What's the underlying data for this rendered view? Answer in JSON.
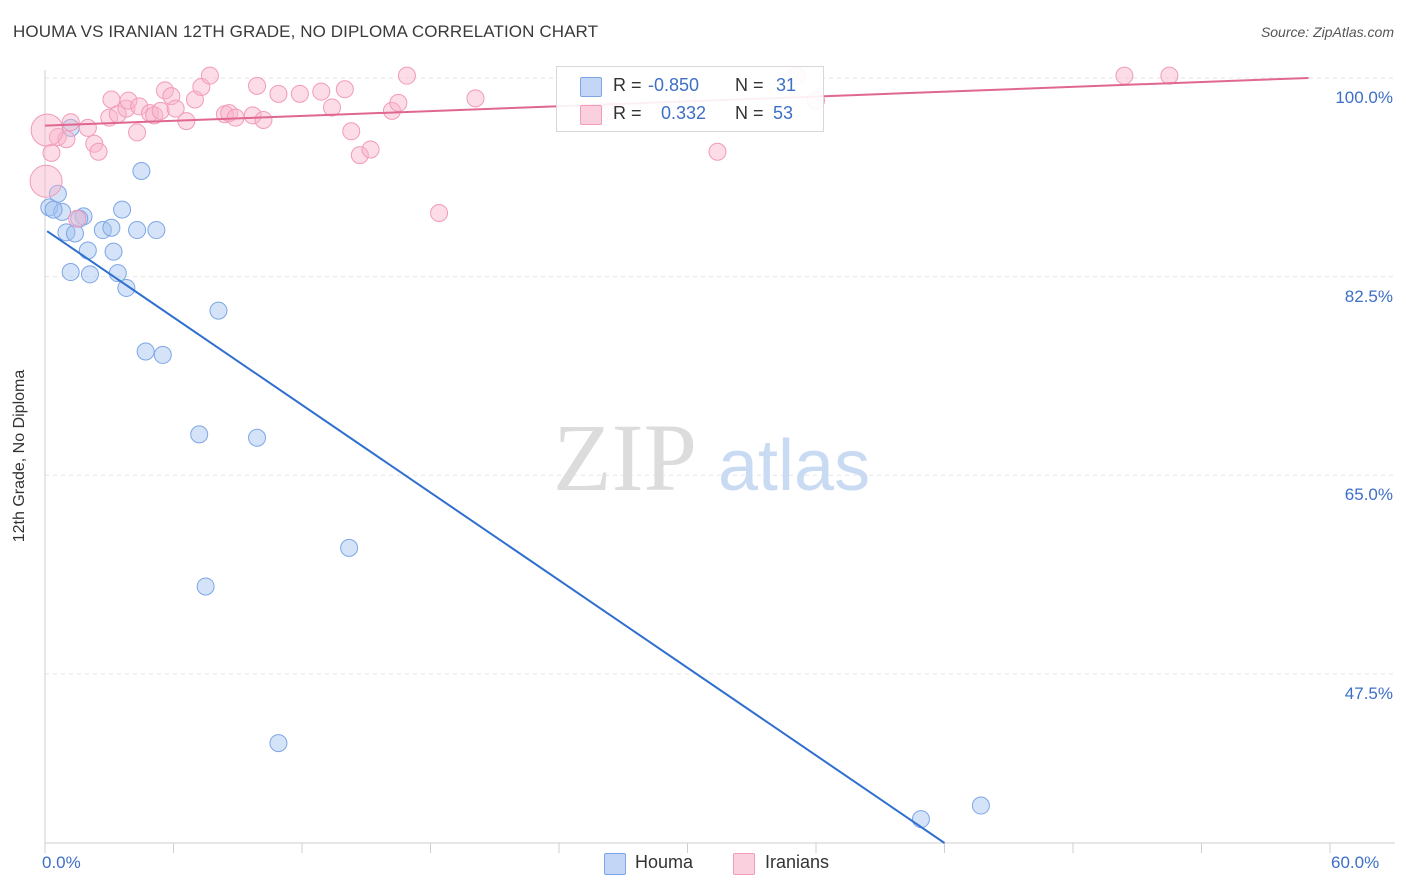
{
  "header": {
    "title": "HOUMA VS IRANIAN 12TH GRADE, NO DIPLOMA CORRELATION CHART",
    "source": "Source: ZipAtlas.com"
  },
  "watermark": {
    "zip": "ZIP",
    "atlas": "atlas"
  },
  "legend": {
    "rows": [
      {
        "r_label": "R =",
        "r_value": "-0.850",
        "n_label": "N =",
        "n_value": "31"
      },
      {
        "r_label": "R =",
        "r_value": "0.332",
        "n_label": "N =",
        "n_value": "53"
      }
    ]
  },
  "bottom_legend": {
    "houma": "Houma",
    "iranians": "Iranians"
  },
  "chart_data": {
    "type": "scatter",
    "ylabel": "12th Grade, No Diploma",
    "xlim": [
      0,
      60
    ],
    "ylim": [
      32.6,
      100.7
    ],
    "x_tick_labels": [
      "0.0%",
      "60.0%"
    ],
    "y_ticks": [
      {
        "value": 100,
        "label": "100.0%"
      },
      {
        "value": 82.5,
        "label": "82.5%"
      },
      {
        "value": 65,
        "label": "65.0%"
      },
      {
        "value": 47.5,
        "label": "47.5%"
      }
    ],
    "colors": {
      "houma": "#6f9de6",
      "houma_line": "#2f6fd0",
      "iranians": "#f07ea6",
      "iranians_line": "#e0678f"
    },
    "series": [
      {
        "name": "Houma",
        "trend": [
          [
            0.1,
            86.5
          ],
          [
            42.0,
            32.6
          ]
        ],
        "points": [
          [
            0.2,
            88.6
          ],
          [
            0.6,
            89.8
          ],
          [
            0.8,
            88.2
          ],
          [
            1.0,
            86.4
          ],
          [
            1.2,
            95.6
          ],
          [
            1.4,
            86.3
          ],
          [
            1.8,
            87.8
          ],
          [
            2.0,
            84.8
          ],
          [
            2.1,
            82.7
          ],
          [
            1.2,
            82.9
          ],
          [
            2.7,
            86.6
          ],
          [
            3.1,
            86.8
          ],
          [
            3.2,
            84.7
          ],
          [
            3.4,
            82.8
          ],
          [
            3.6,
            88.4
          ],
          [
            3.8,
            81.5
          ],
          [
            4.3,
            86.6
          ],
          [
            4.5,
            91.8
          ],
          [
            4.7,
            75.9
          ],
          [
            5.2,
            86.6
          ],
          [
            5.5,
            75.6
          ],
          [
            8.1,
            79.5
          ],
          [
            7.2,
            68.6
          ],
          [
            7.5,
            55.2
          ],
          [
            9.9,
            68.3
          ],
          [
            14.2,
            58.6
          ],
          [
            10.9,
            41.4
          ],
          [
            40.9,
            34.7
          ],
          [
            43.7,
            35.9
          ],
          [
            1.6,
            87.6
          ],
          [
            0.4,
            88.4
          ]
        ]
      },
      {
        "name": "Iranians",
        "trend": [
          [
            0.0,
            95.8
          ],
          [
            59.0,
            100.0
          ]
        ],
        "points": [
          [
            0.3,
            93.4
          ],
          [
            0.6,
            94.8
          ],
          [
            1.0,
            94.6
          ],
          [
            1.2,
            96.1
          ],
          [
            1.5,
            87.6
          ],
          [
            2.0,
            95.6
          ],
          [
            2.3,
            94.2
          ],
          [
            2.5,
            93.5
          ],
          [
            3.0,
            96.5
          ],
          [
            3.1,
            98.1
          ],
          [
            3.4,
            96.8
          ],
          [
            3.8,
            97.3
          ],
          [
            3.9,
            98.0
          ],
          [
            4.3,
            95.2
          ],
          [
            4.4,
            97.5
          ],
          [
            4.9,
            96.9
          ],
          [
            5.1,
            96.7
          ],
          [
            5.4,
            97.1
          ],
          [
            5.6,
            98.9
          ],
          [
            5.9,
            98.4
          ],
          [
            6.1,
            97.3
          ],
          [
            6.6,
            96.2
          ],
          [
            7.0,
            98.1
          ],
          [
            7.3,
            99.2
          ],
          [
            7.7,
            100.2
          ],
          [
            8.4,
            96.8
          ],
          [
            8.6,
            96.9
          ],
          [
            8.9,
            96.5
          ],
          [
            9.7,
            96.7
          ],
          [
            9.9,
            99.3
          ],
          [
            10.2,
            96.3
          ],
          [
            10.9,
            98.6
          ],
          [
            11.9,
            98.6
          ],
          [
            12.9,
            98.8
          ],
          [
            13.4,
            97.4
          ],
          [
            14.0,
            99.0
          ],
          [
            14.3,
            95.3
          ],
          [
            14.7,
            93.2
          ],
          [
            15.2,
            93.7
          ],
          [
            16.2,
            97.1
          ],
          [
            16.5,
            97.8
          ],
          [
            16.9,
            100.2
          ],
          [
            18.4,
            88.1
          ],
          [
            20.1,
            98.2
          ],
          [
            26.4,
            97.1
          ],
          [
            30.0,
            97.9
          ],
          [
            31.4,
            93.5
          ],
          [
            35.1,
            100.2
          ],
          [
            36.0,
            98.0
          ],
          [
            50.4,
            100.2
          ],
          [
            52.5,
            100.2
          ],
          [
            0.05,
            90.9
          ],
          [
            0.1,
            95.4
          ]
        ]
      }
    ]
  }
}
